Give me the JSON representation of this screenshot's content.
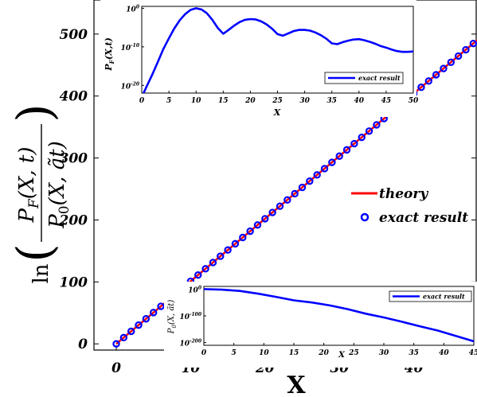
{
  "chart_data": [
    {
      "type": "line",
      "role": "main",
      "xlabel": "X",
      "ylabel": "ln( P_F(X,t) / P_0(X, ã t) )",
      "xlim": [
        -3,
        48.5
      ],
      "ylim": [
        -10,
        555
      ],
      "xticks": [
        0,
        10,
        20,
        30,
        40
      ],
      "yticks": [
        0,
        100,
        200,
        300,
        400,
        500
      ],
      "legend": {
        "position": "right",
        "entries": [
          "theory",
          "exact result"
        ]
      },
      "series": [
        {
          "name": "theory",
          "color": "#ff0000",
          "style": "line",
          "x": [
            0,
            48.5
          ],
          "y": [
            0,
            490
          ]
        },
        {
          "name": "exact result",
          "color": "#0000ff",
          "style": "circles",
          "x_start": 0,
          "x_end": 48,
          "x_step": 1,
          "slope": 10.1
        }
      ]
    },
    {
      "type": "line",
      "role": "inset-top",
      "xlabel": "X",
      "ylabel": "P_F(X,t)",
      "log_y": true,
      "xlim": [
        0,
        50
      ],
      "ylim_exp": [
        -22,
        0.5
      ],
      "xticks": [
        0,
        5,
        10,
        15,
        20,
        25,
        30,
        35,
        40,
        45,
        50
      ],
      "yticks_exp": [
        0,
        -10,
        -20
      ],
      "legend": {
        "position": "bottom-right",
        "entries": [
          "exact result"
        ]
      },
      "series": [
        {
          "name": "exact result",
          "color": "#0000ff",
          "x": [
            0,
            0.5,
            1,
            2,
            3,
            4,
            5,
            6,
            7,
            8,
            9,
            10,
            11,
            12,
            13,
            14,
            15,
            16,
            17,
            18,
            19,
            20,
            21,
            22,
            23,
            24,
            25,
            26,
            27,
            28,
            29,
            30,
            31,
            32,
            33,
            34,
            35,
            36,
            37,
            38,
            39,
            40,
            41,
            42,
            43,
            44,
            45,
            46,
            47,
            48,
            49,
            50
          ],
          "log10_y": [
            -23,
            -21.5,
            -20,
            -17,
            -13.8,
            -10.5,
            -7.8,
            -5.2,
            -3.1,
            -1.5,
            -0.4,
            0,
            -0.3,
            -1.3,
            -3,
            -5.1,
            -6.6,
            -5.6,
            -4.5,
            -3.6,
            -3,
            -2.8,
            -2.9,
            -3.4,
            -4.2,
            -5.3,
            -6.7,
            -7.1,
            -6.5,
            -5.9,
            -5.6,
            -5.6,
            -5.8,
            -6.3,
            -7,
            -7.9,
            -9.1,
            -9.3,
            -8.8,
            -8.4,
            -8.1,
            -8.0,
            -8.3,
            -8.7,
            -9.2,
            -9.8,
            -10.2,
            -10.7,
            -11.1,
            -11.3,
            -11.3,
            -11.2
          ]
        }
      ]
    },
    {
      "type": "line",
      "role": "inset-bottom",
      "xlabel": "X",
      "ylabel": "P_0(X, ã t)",
      "log_y": true,
      "xlim": [
        0,
        45
      ],
      "ylim_exp": [
        -210,
        10
      ],
      "xticks": [
        0,
        5,
        10,
        15,
        20,
        25,
        30,
        35,
        40,
        45
      ],
      "yticks_exp": [
        0,
        -100,
        -200
      ],
      "legend": {
        "position": "top-right",
        "entries": [
          "exact result"
        ]
      },
      "series": [
        {
          "name": "exact result",
          "color": "#0000ff",
          "x": [
            0,
            3,
            6,
            9,
            12,
            15,
            18,
            21,
            24,
            27,
            30,
            33,
            36,
            39,
            42,
            45
          ],
          "log10_y": [
            0,
            -2,
            -7,
            -17,
            -29,
            -42,
            -50,
            -61,
            -75,
            -92,
            -106,
            -122,
            -139,
            -155,
            -175,
            -195
          ]
        }
      ]
    }
  ],
  "labels": {
    "main_xlabel": "X",
    "legend_theory": "theory",
    "legend_exact": "exact result",
    "inset_top_ylabel": "P_F(X,t)",
    "inset_top_xlabel": "X",
    "inset_top_legend": "exact result",
    "inset_bottom_ylabel": "P_0(X, ã t)",
    "inset_bottom_xlabel": "X",
    "inset_bottom_legend": "exact result"
  }
}
